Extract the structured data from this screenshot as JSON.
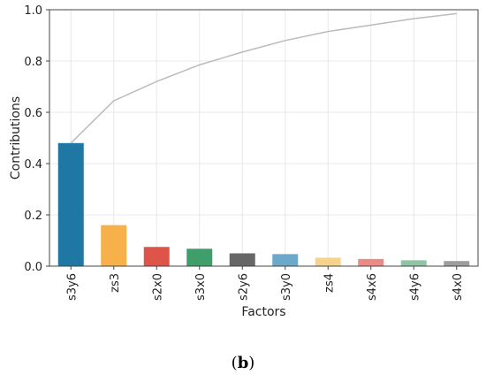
{
  "caption": {
    "open": "(",
    "letter": "b",
    "close": ")"
  },
  "chart_data": {
    "type": "bar",
    "xlabel": "Factors",
    "ylabel": "Contributions",
    "ylim": [
      0,
      1.0
    ],
    "yticks": [
      "0.0",
      "0.2",
      "0.4",
      "0.6",
      "0.8",
      "1.0"
    ],
    "grid": true,
    "categories": [
      "s3y6",
      "zs3",
      "s2x0",
      "s3x0",
      "s2y6",
      "s3y0",
      "zs4",
      "s4x6",
      "s4y6",
      "s4x0"
    ],
    "values": [
      0.48,
      0.16,
      0.075,
      0.068,
      0.05,
      0.047,
      0.033,
      0.028,
      0.023,
      0.02
    ],
    "colors": [
      "#1f77a4",
      "#f8b04a",
      "#de5448",
      "#3f9e6a",
      "#666666",
      "#6ba8c9",
      "#f5d38a",
      "#ee8a86",
      "#8fc4a4",
      "#9e9e9e"
    ],
    "cumulative": [
      0.48,
      0.645,
      0.72,
      0.785,
      0.835,
      0.88,
      0.915,
      0.94,
      0.965,
      0.985
    ],
    "cumulative_color": "#bbbbbb"
  }
}
